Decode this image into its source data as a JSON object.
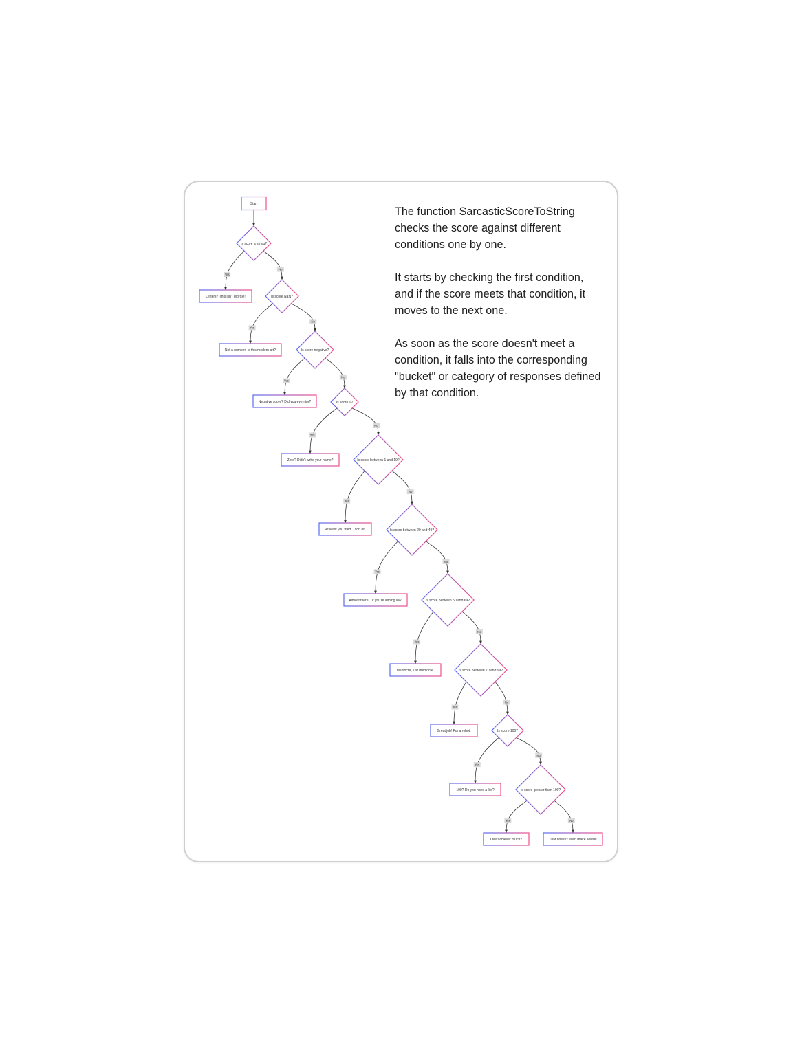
{
  "colors": {
    "gradient_start": "#5b6cf0",
    "gradient_end": "#f0508a",
    "edge": "#333333",
    "edge_label_bg": "#d9d9d9"
  },
  "explanation": {
    "p1": "The function SarcasticScoreToString checks the score against different conditions one by one.",
    "p2": "It starts by checking the first condition, and if the score meets that condition, it moves to the next one.",
    "p3": "As soon as the score doesn't meet a condition, it falls into the corresponding \"bucket\" or category of responses defined by that condition."
  },
  "flowchart": {
    "start": "Start",
    "yes_label": "Yes",
    "no_label": "No",
    "decisions": [
      {
        "question": "Is score a string?",
        "yes": "Letters? This isn't Wordle!"
      },
      {
        "question": "Is score NaN?",
        "yes": "Not a number. Is this modern art?"
      },
      {
        "question": "Is score negative?",
        "yes": "Negative score? Did you even try?"
      },
      {
        "question": "Is score 0?",
        "yes": "Zero? Didn't write your name?"
      },
      {
        "question": "Is score between 1 and 19?",
        "yes": "At least you tried... sort of."
      },
      {
        "question": "Is score between 20 and 49?",
        "yes": "Almost there... if you're aiming low."
      },
      {
        "question": "Is score between 50 and 69?",
        "yes": "Mediocre, just mediocre."
      },
      {
        "question": "Is score between 70 and 99?",
        "yes": "Great job! For a robot."
      },
      {
        "question": "Is score 100?",
        "yes": "100? Do you have a life?"
      },
      {
        "question": "Is score greater than 100?",
        "yes": "Overachiever much?",
        "no": "That doesn't even make sense!"
      }
    ]
  }
}
